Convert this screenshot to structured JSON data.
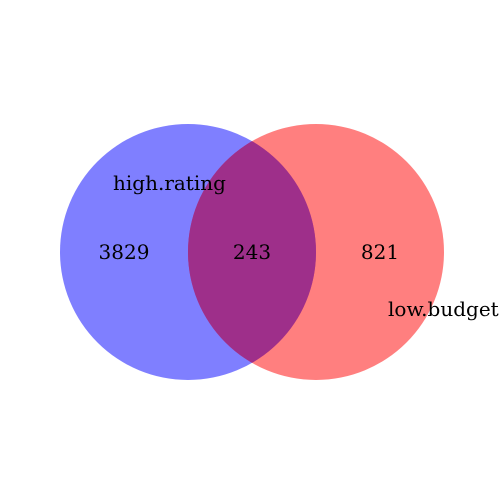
{
  "diagram": {
    "type": "venn-2",
    "sets": [
      {
        "label": "high.rating",
        "only_count": "3829",
        "color": "#0000ff"
      },
      {
        "label": "low.budget",
        "only_count": "821",
        "color": "#ff0000"
      }
    ],
    "intersection": {
      "count": "243",
      "color": "#9a2d8c"
    },
    "circle_opacity": 0.5
  }
}
